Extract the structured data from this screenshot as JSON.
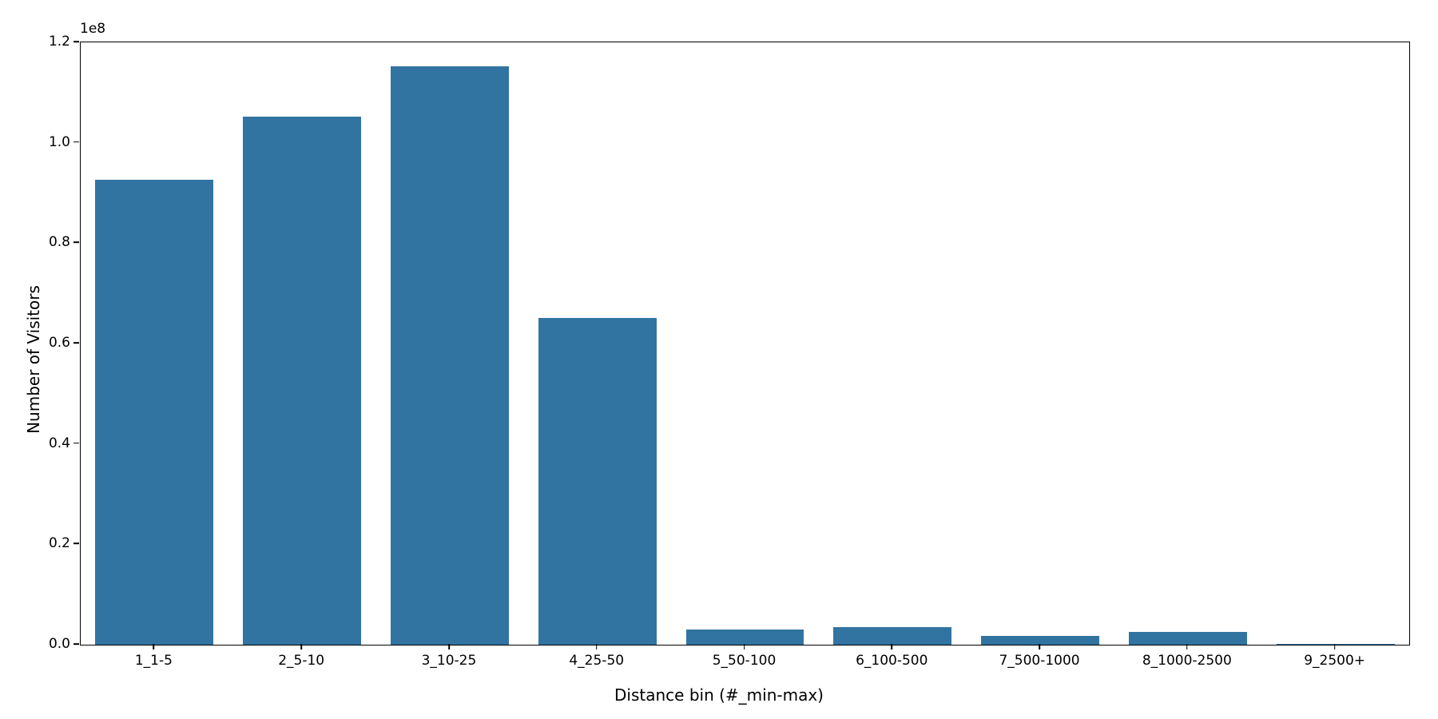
{
  "chart_data": {
    "type": "bar",
    "title": "",
    "xlabel": "Distance bin (#_min-max)",
    "ylabel": "Number of Visitors",
    "categories": [
      "1_1-5",
      "2_5-10",
      "3_10-25",
      "4_25-50",
      "5_50-100",
      "6_100-500",
      "7_500-1000",
      "8_1000-2500",
      "9_2500+"
    ],
    "values": [
      92600000,
      105200000,
      115300000,
      65100000,
      2950000,
      3500000,
      1700000,
      2550000,
      150000
    ],
    "ylim": [
      0,
      120000000
    ],
    "yticks": [
      0,
      20000000,
      40000000,
      60000000,
      80000000,
      100000000,
      120000000
    ],
    "ytick_labels": [
      "0.0",
      "0.2",
      "0.4",
      "0.6",
      "0.8",
      "1.0",
      "1.2"
    ],
    "offset_label": "1e8",
    "bar_color": "#3274a1",
    "bar_width_fraction": 0.8,
    "grid": false,
    "legend": null
  }
}
